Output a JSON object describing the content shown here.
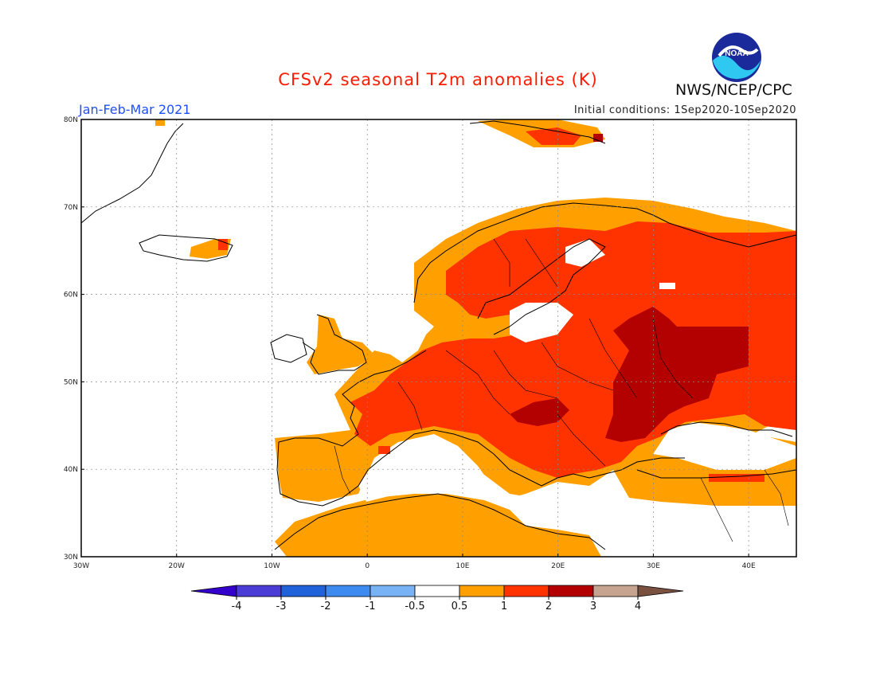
{
  "header": {
    "title": "CFSv2 seasonal T2m anomalies (K)",
    "period": "Jan-Feb-Mar 2021",
    "initial_conditions": "Initial conditions: 1Sep2020-10Sep2020",
    "agency": "NWS/NCEP/CPC",
    "logo_text": "NOAA"
  },
  "map": {
    "lon_range": [
      -30,
      45
    ],
    "lat_range": [
      30,
      80
    ],
    "lon_ticks": [
      "30W",
      "20W",
      "10W",
      "0",
      "10E",
      "20E",
      "30E",
      "40E"
    ],
    "lat_ticks": [
      "30N",
      "40N",
      "50N",
      "60N",
      "70N",
      "80N"
    ],
    "colors": {
      "class_0_5_1": "#ffa000",
      "class_1_2": "#ff3300",
      "class_2_3": "#b30000",
      "background": "#ffffff",
      "coastline": "#000000"
    }
  },
  "colorbar": {
    "labels": [
      "-4",
      "-3",
      "-2",
      "-1",
      "-0.5",
      "0.5",
      "1",
      "2",
      "3",
      "4"
    ],
    "colors": [
      "#3300cc",
      "#4b3cd6",
      "#1f62d9",
      "#3d8bf0",
      "#78b4f5",
      "#ffffff",
      "#ffa000",
      "#ff3300",
      "#b30000",
      "#c7a48f",
      "#7a5040"
    ]
  }
}
